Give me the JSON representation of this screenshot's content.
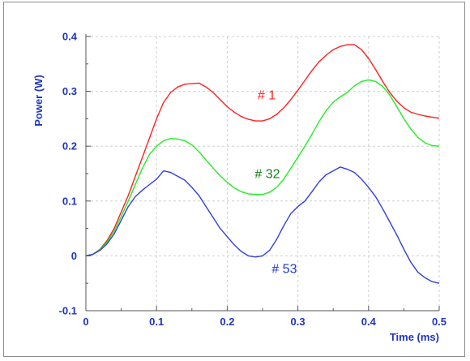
{
  "chart_data": {
    "type": "line",
    "title": "",
    "xlabel": "Time (ms)",
    "ylabel": "Power (W)",
    "xlim": [
      0,
      0.5
    ],
    "ylim": [
      -0.1,
      0.4
    ],
    "grid": true,
    "x_ticks": [
      "0",
      "0.1",
      "0.2",
      "0.3",
      "0.4",
      "0.5"
    ],
    "y_ticks": [
      "-0.1",
      "0",
      "0.1",
      "0.2",
      "0.3",
      "0.4"
    ],
    "colors": {
      "axis_text": "#1f35c4",
      "grid": "#cfcfcf",
      "frame": "#8c8c8c"
    },
    "series": [
      {
        "name": "# 1",
        "color": "#ff2020",
        "label_color": "#ff2020",
        "label_at": [
          0.243,
          0.285
        ],
        "x": [
          0,
          0.01,
          0.02,
          0.03,
          0.04,
          0.05,
          0.06,
          0.07,
          0.08,
          0.09,
          0.1,
          0.11,
          0.12,
          0.13,
          0.14,
          0.15,
          0.16,
          0.17,
          0.18,
          0.19,
          0.2,
          0.21,
          0.22,
          0.23,
          0.24,
          0.25,
          0.26,
          0.27,
          0.28,
          0.29,
          0.3,
          0.31,
          0.32,
          0.33,
          0.34,
          0.35,
          0.36,
          0.37,
          0.38,
          0.39,
          0.4,
          0.41,
          0.42,
          0.43,
          0.44,
          0.45,
          0.46,
          0.47,
          0.48,
          0.49,
          0.5
        ],
        "y": [
          0,
          0.003,
          0.012,
          0.028,
          0.05,
          0.08,
          0.11,
          0.145,
          0.18,
          0.215,
          0.25,
          0.28,
          0.298,
          0.308,
          0.313,
          0.314,
          0.315,
          0.308,
          0.298,
          0.285,
          0.272,
          0.262,
          0.254,
          0.249,
          0.246,
          0.246,
          0.25,
          0.258,
          0.27,
          0.285,
          0.302,
          0.32,
          0.338,
          0.354,
          0.366,
          0.376,
          0.382,
          0.385,
          0.385,
          0.376,
          0.36,
          0.34,
          0.318,
          0.298,
          0.282,
          0.27,
          0.262,
          0.258,
          0.255,
          0.253,
          0.251
        ]
      },
      {
        "name": "# 32",
        "color": "#22ee22",
        "label_color": "#1a7a1a",
        "label_at": [
          0.239,
          0.142
        ],
        "x": [
          0,
          0.01,
          0.02,
          0.03,
          0.04,
          0.05,
          0.06,
          0.07,
          0.08,
          0.09,
          0.1,
          0.11,
          0.12,
          0.13,
          0.14,
          0.15,
          0.16,
          0.17,
          0.18,
          0.19,
          0.2,
          0.21,
          0.22,
          0.23,
          0.24,
          0.25,
          0.26,
          0.27,
          0.28,
          0.29,
          0.3,
          0.31,
          0.32,
          0.33,
          0.34,
          0.35,
          0.36,
          0.37,
          0.38,
          0.39,
          0.4,
          0.41,
          0.42,
          0.43,
          0.44,
          0.45,
          0.46,
          0.47,
          0.48,
          0.49,
          0.5
        ],
        "y": [
          0,
          0.003,
          0.011,
          0.025,
          0.045,
          0.072,
          0.1,
          0.13,
          0.16,
          0.185,
          0.2,
          0.21,
          0.214,
          0.213,
          0.21,
          0.202,
          0.19,
          0.175,
          0.16,
          0.146,
          0.134,
          0.124,
          0.117,
          0.113,
          0.112,
          0.112,
          0.116,
          0.125,
          0.14,
          0.16,
          0.18,
          0.2,
          0.222,
          0.245,
          0.265,
          0.28,
          0.29,
          0.298,
          0.31,
          0.318,
          0.321,
          0.318,
          0.309,
          0.293,
          0.272,
          0.25,
          0.231,
          0.216,
          0.206,
          0.201,
          0.2
        ]
      },
      {
        "name": "# 53",
        "color": "#2f3fe0",
        "label_color": "#1f35c4",
        "label_at": [
          0.263,
          -0.031
        ],
        "x": [
          0,
          0.01,
          0.02,
          0.03,
          0.04,
          0.05,
          0.06,
          0.07,
          0.08,
          0.09,
          0.1,
          0.11,
          0.12,
          0.13,
          0.14,
          0.15,
          0.16,
          0.17,
          0.18,
          0.19,
          0.2,
          0.21,
          0.22,
          0.23,
          0.24,
          0.25,
          0.26,
          0.27,
          0.28,
          0.29,
          0.3,
          0.31,
          0.32,
          0.33,
          0.34,
          0.35,
          0.36,
          0.37,
          0.38,
          0.39,
          0.4,
          0.41,
          0.42,
          0.43,
          0.44,
          0.45,
          0.46,
          0.47,
          0.48,
          0.49,
          0.5
        ],
        "y": [
          0,
          0.003,
          0.01,
          0.022,
          0.04,
          0.065,
          0.09,
          0.108,
          0.12,
          0.13,
          0.14,
          0.155,
          0.152,
          0.145,
          0.138,
          0.125,
          0.11,
          0.09,
          0.07,
          0.05,
          0.035,
          0.02,
          0.008,
          0.0,
          -0.002,
          0.0,
          0.01,
          0.03,
          0.055,
          0.077,
          0.09,
          0.1,
          0.117,
          0.135,
          0.148,
          0.155,
          0.162,
          0.158,
          0.152,
          0.14,
          0.125,
          0.108,
          0.086,
          0.062,
          0.038,
          0.012,
          -0.012,
          -0.03,
          -0.04,
          -0.047,
          -0.05
        ]
      }
    ]
  }
}
